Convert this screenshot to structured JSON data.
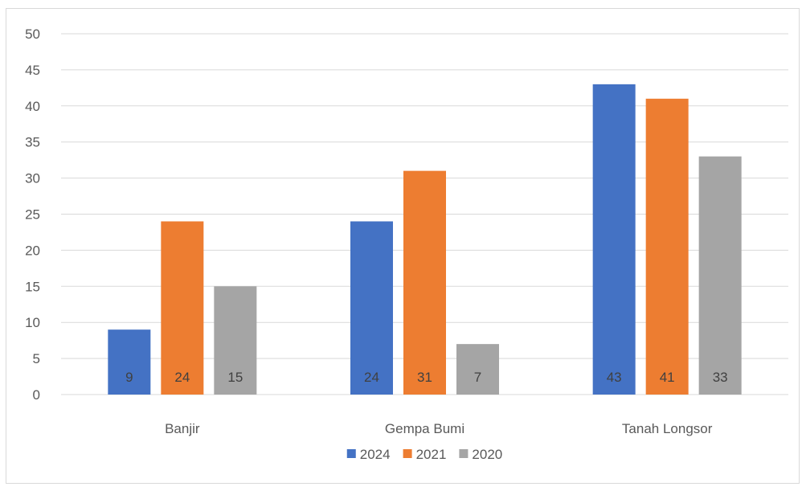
{
  "chart_data": {
    "type": "bar",
    "title": "",
    "xlabel": "",
    "ylabel": "",
    "categories": [
      "Banjir",
      "Gempa Bumi",
      "Tanah Longsor"
    ],
    "series": [
      {
        "name": "2024",
        "values": [
          9,
          24,
          43
        ],
        "color": "#4472c4"
      },
      {
        "name": "2021",
        "values": [
          24,
          31,
          41
        ],
        "color": "#ed7d31"
      },
      {
        "name": "2020",
        "values": [
          15,
          7,
          33
        ],
        "color": "#a5a5a5"
      }
    ],
    "ylim": [
      0,
      50
    ],
    "yticks": [
      0,
      5,
      10,
      15,
      20,
      25,
      30,
      35,
      40,
      45,
      50
    ],
    "grid": true,
    "legend_position": "bottom",
    "data_labels": "inside-base",
    "gridline_color": "#d9d9d9"
  }
}
